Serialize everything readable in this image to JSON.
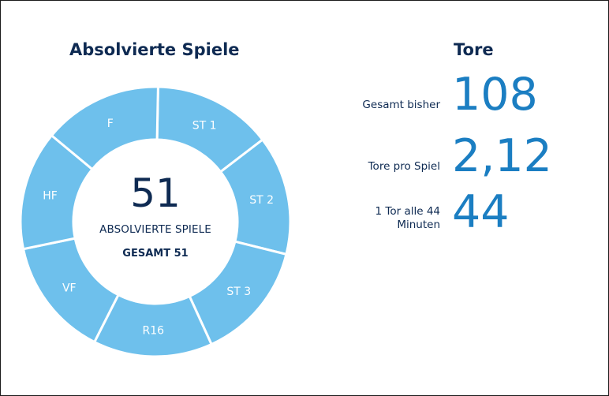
{
  "games": {
    "title": "Absolvierte Spiele",
    "count": "51",
    "caption": "ABSOLVIERTE SPIELE",
    "total": "GESAMT 51",
    "segments": [
      "ST 1",
      "ST 2",
      "ST 3",
      "R16",
      "VF",
      "HF",
      "F"
    ],
    "segment_color": "#6ec0ec",
    "divider_color": "#ffffff"
  },
  "goals": {
    "title": "Tore",
    "stats": [
      {
        "label": "Gesamt bisher",
        "value": "108"
      },
      {
        "label": "Tore pro Spiel",
        "value": "2,12"
      },
      {
        "label_line1": "1 Tor alle 44",
        "label_line2": "Minuten",
        "value": "44"
      }
    ]
  },
  "colors": {
    "heading": "#0e2a52",
    "value": "#1b7ec2"
  }
}
